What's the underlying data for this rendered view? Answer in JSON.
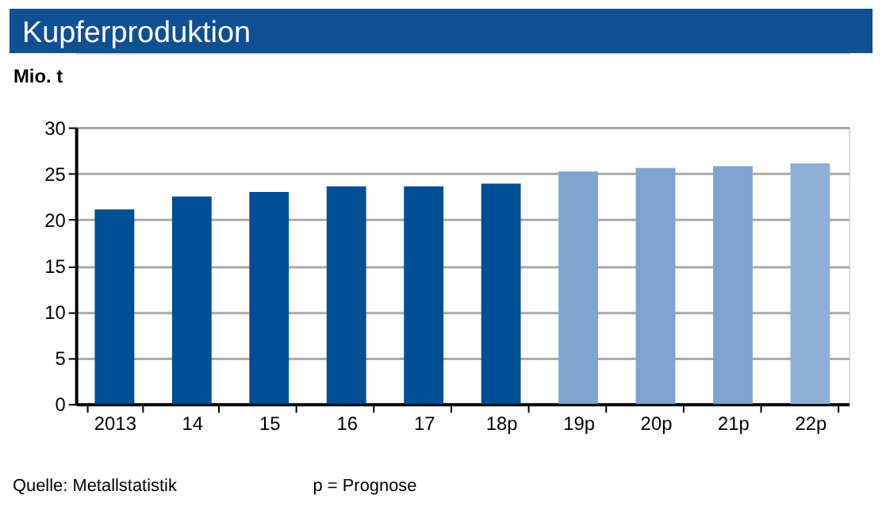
{
  "chart_data": {
    "type": "bar",
    "title": "Kupferproduktion",
    "ylabel": "Mio. t",
    "categories": [
      "2013",
      "14",
      "15",
      "16",
      "17",
      "18p",
      "19p",
      "20p",
      "21p",
      "22p"
    ],
    "values": [
      21.1,
      22.5,
      23.0,
      23.6,
      23.6,
      23.9,
      25.2,
      25.6,
      25.8,
      26.1
    ],
    "colors": [
      "#004f95",
      "#004f95",
      "#004f95",
      "#004f95",
      "#004f95",
      "#004f95",
      "#7fa3cf",
      "#7fa3cf",
      "#7fa3cf",
      "#8fb0d6"
    ],
    "ylim": [
      0,
      30
    ],
    "yticks": [
      0,
      5,
      10,
      15,
      20,
      25,
      30
    ],
    "grid": "y",
    "annotations": [
      "Quelle: Metallstatistik",
      "p = Prognose"
    ]
  }
}
